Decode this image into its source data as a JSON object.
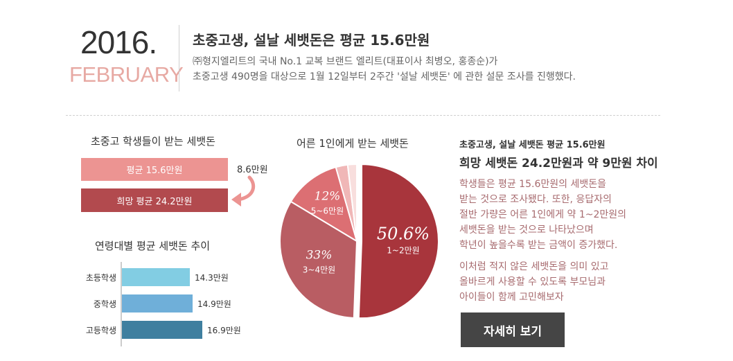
{
  "header": {
    "year": "2016.",
    "month": "FEBRUARY",
    "headline": "초중고생, 설날 세뱃돈은 평균 15.6만원",
    "desc_line1": "㈜형지엘리트의 국내 No.1 교복 브랜드 엘리트(대표이사 최병오, 홍종순)가",
    "desc_line2": "초중고생 490명을 대상으로 1월 12일부터 2주간 '설날 세뱃돈' 에 관한 설문 조사를 진행했다."
  },
  "section_compare": {
    "title": "초중고 학생들이 받는 세뱃돈",
    "avg_label": "평균 15.6만원",
    "hope_label": "희망 평균 24.2만원",
    "diff_label": "8.6만원"
  },
  "section_age": {
    "title": "연령대별 평균 세뱃돈 추이",
    "rows": [
      {
        "label": "초등학생",
        "value_label": "14.3만원"
      },
      {
        "label": "중학생",
        "value_label": "14.9만원"
      },
      {
        "label": "고등학생",
        "value_label": "16.9만원"
      }
    ]
  },
  "section_pie": {
    "title": "어른 1인에게 받는 세뱃돈",
    "slices": [
      {
        "pct_label": "50.6%",
        "range_label": "1~2만원"
      },
      {
        "pct_label": "33%",
        "range_label": "3~4만원"
      },
      {
        "pct_label": "12%",
        "range_label": "5~6만원"
      }
    ]
  },
  "summary": {
    "title1": "초중고생, 설날 세뱃돈 평균 15.6만원",
    "title2": "희망 세뱃돈 24.2만원과 약 9만원 차이",
    "body": [
      "학생들은 평균 15.6만원의 세뱃돈을",
      "받는 것으로 조사됐다. 또한, 응답자의",
      "절반 가량은 어른 1인에게 약 1~2만원의",
      "세뱃돈을 받는 것으로 나타났으며",
      "학년이 높을수록 받는 금액이 증가했다."
    ],
    "body2": [
      "이처럼 적지 않은 세뱃돈을 의미 있고",
      "올바르게 사용할 수 있도록 부모님과",
      "아이들이 함께 고민해보자"
    ],
    "button_label": "자세히 보기"
  },
  "colors": {
    "pink": "#ec9492",
    "maroon": "#b24a4e",
    "pie_main": "#a8353c",
    "pie_2": "#b95d63",
    "pie_3": "#dc6f73",
    "pie_4": "#f0b7b7",
    "pie_5": "#f8dedd",
    "age_1": "#82cde3",
    "age_2": "#6fafd9",
    "age_3": "#3f7f9f",
    "accent_text": "#a76a6e"
  },
  "chart_data": [
    {
      "type": "bar",
      "title": "초중고 학생들이 받는 세뱃돈",
      "categories": [
        "평균",
        "희망 평균"
      ],
      "values": [
        15.6,
        24.2
      ],
      "unit": "만원",
      "annotations": [
        "8.6만원"
      ]
    },
    {
      "type": "bar",
      "orientation": "horizontal",
      "title": "연령대별 평균 세뱃돈 추이",
      "categories": [
        "초등학생",
        "중학생",
        "고등학생"
      ],
      "values": [
        14.3,
        14.9,
        16.9
      ],
      "unit": "만원"
    },
    {
      "type": "pie",
      "title": "어른 1인에게 받는 세뱃돈",
      "categories": [
        "1~2만원",
        "3~4만원",
        "5~6만원",
        "",
        ""
      ],
      "values": [
        50.6,
        33,
        12,
        2.5,
        1.9
      ],
      "unit": "%"
    }
  ]
}
